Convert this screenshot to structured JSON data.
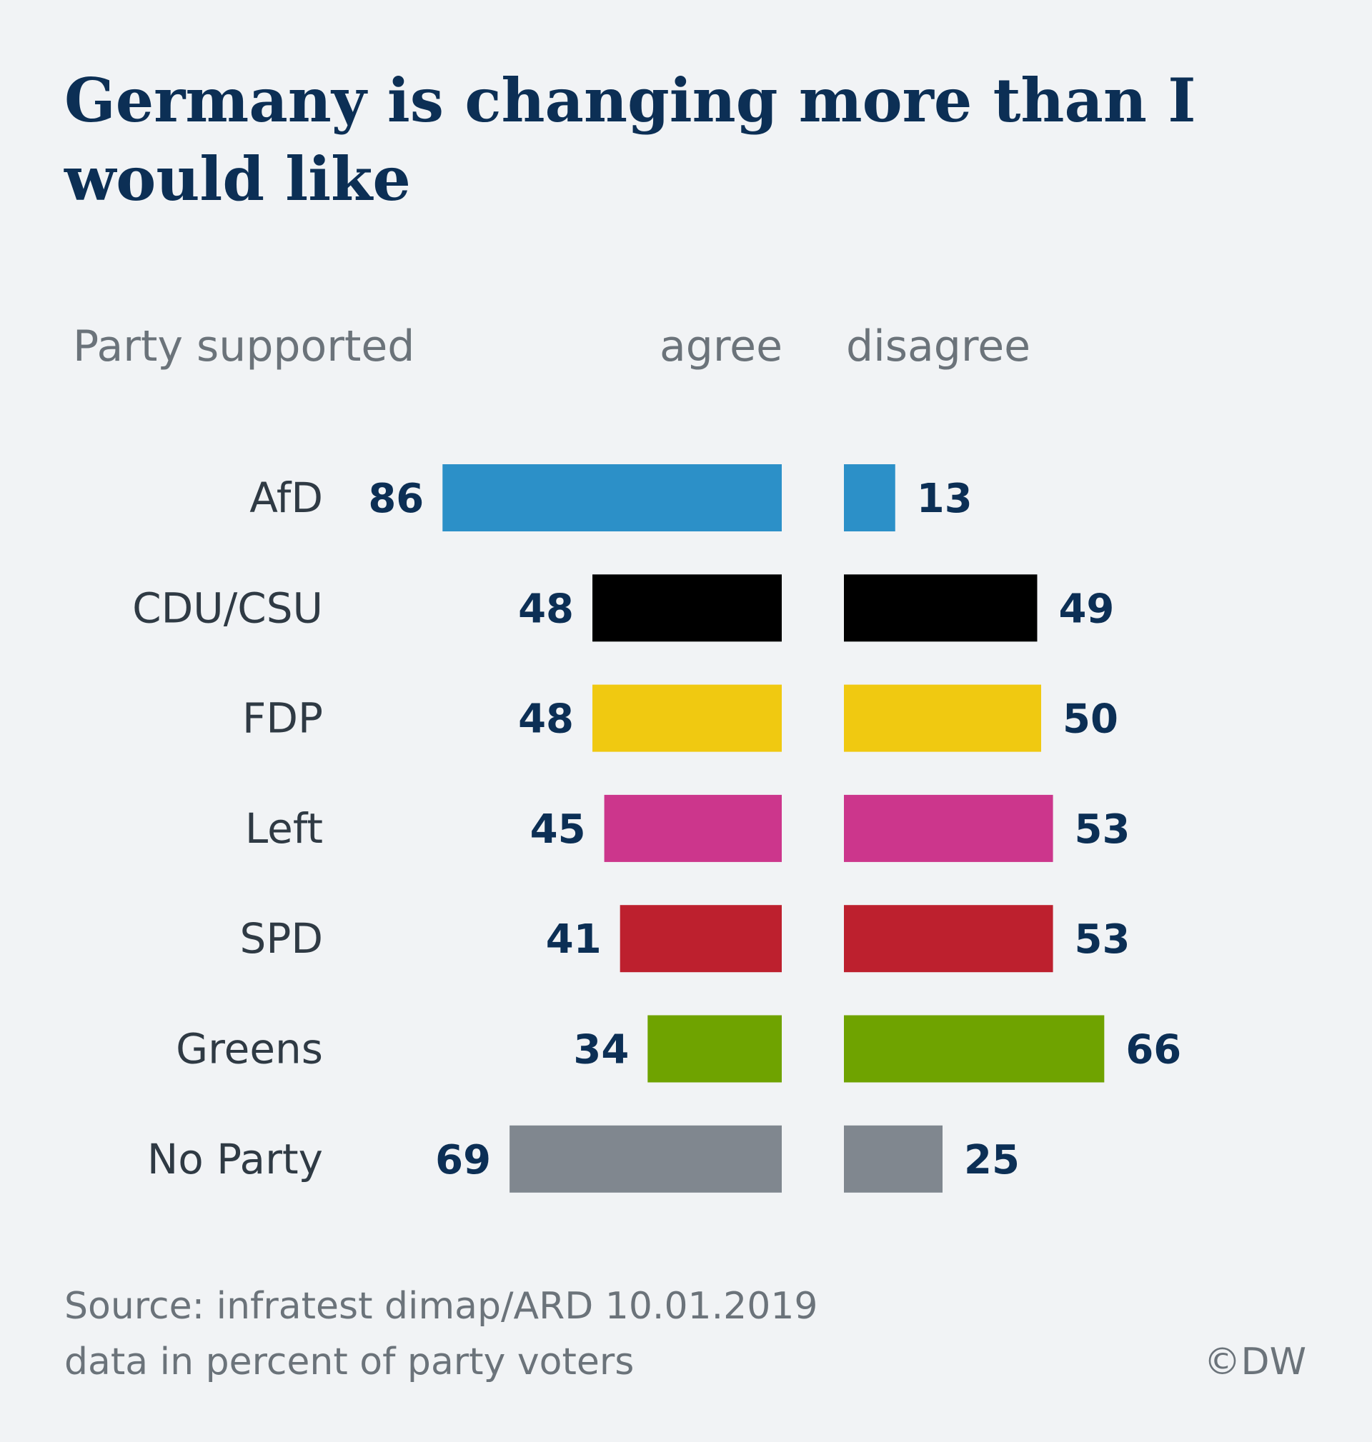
{
  "chart_data": {
    "type": "bar",
    "title": "Germany is changing more than I would like",
    "title_lines": [
      "Germany is changing more than I",
      "would like"
    ],
    "category_header": "Party supported",
    "categories": [
      "AfD",
      "CDU/CSU",
      "FDP",
      "Left",
      "SPD",
      "Greens",
      "No Party"
    ],
    "series": [
      {
        "name": "agree",
        "values": [
          86,
          48,
          48,
          45,
          41,
          34,
          69
        ]
      },
      {
        "name": "disagree",
        "values": [
          13,
          49,
          50,
          53,
          53,
          66,
          25
        ]
      }
    ],
    "colors": [
      "#2c90c8",
      "#000000",
      "#f0c911",
      "#cc368c",
      "#bd202e",
      "#6fa300",
      "#80878f"
    ],
    "layout": "diverging-horizontal",
    "grid": false,
    "source_lines": [
      "Source: infratest dimap/ARD 10.01.2019",
      "data in percent of party voters"
    ],
    "credit": "©DW"
  }
}
